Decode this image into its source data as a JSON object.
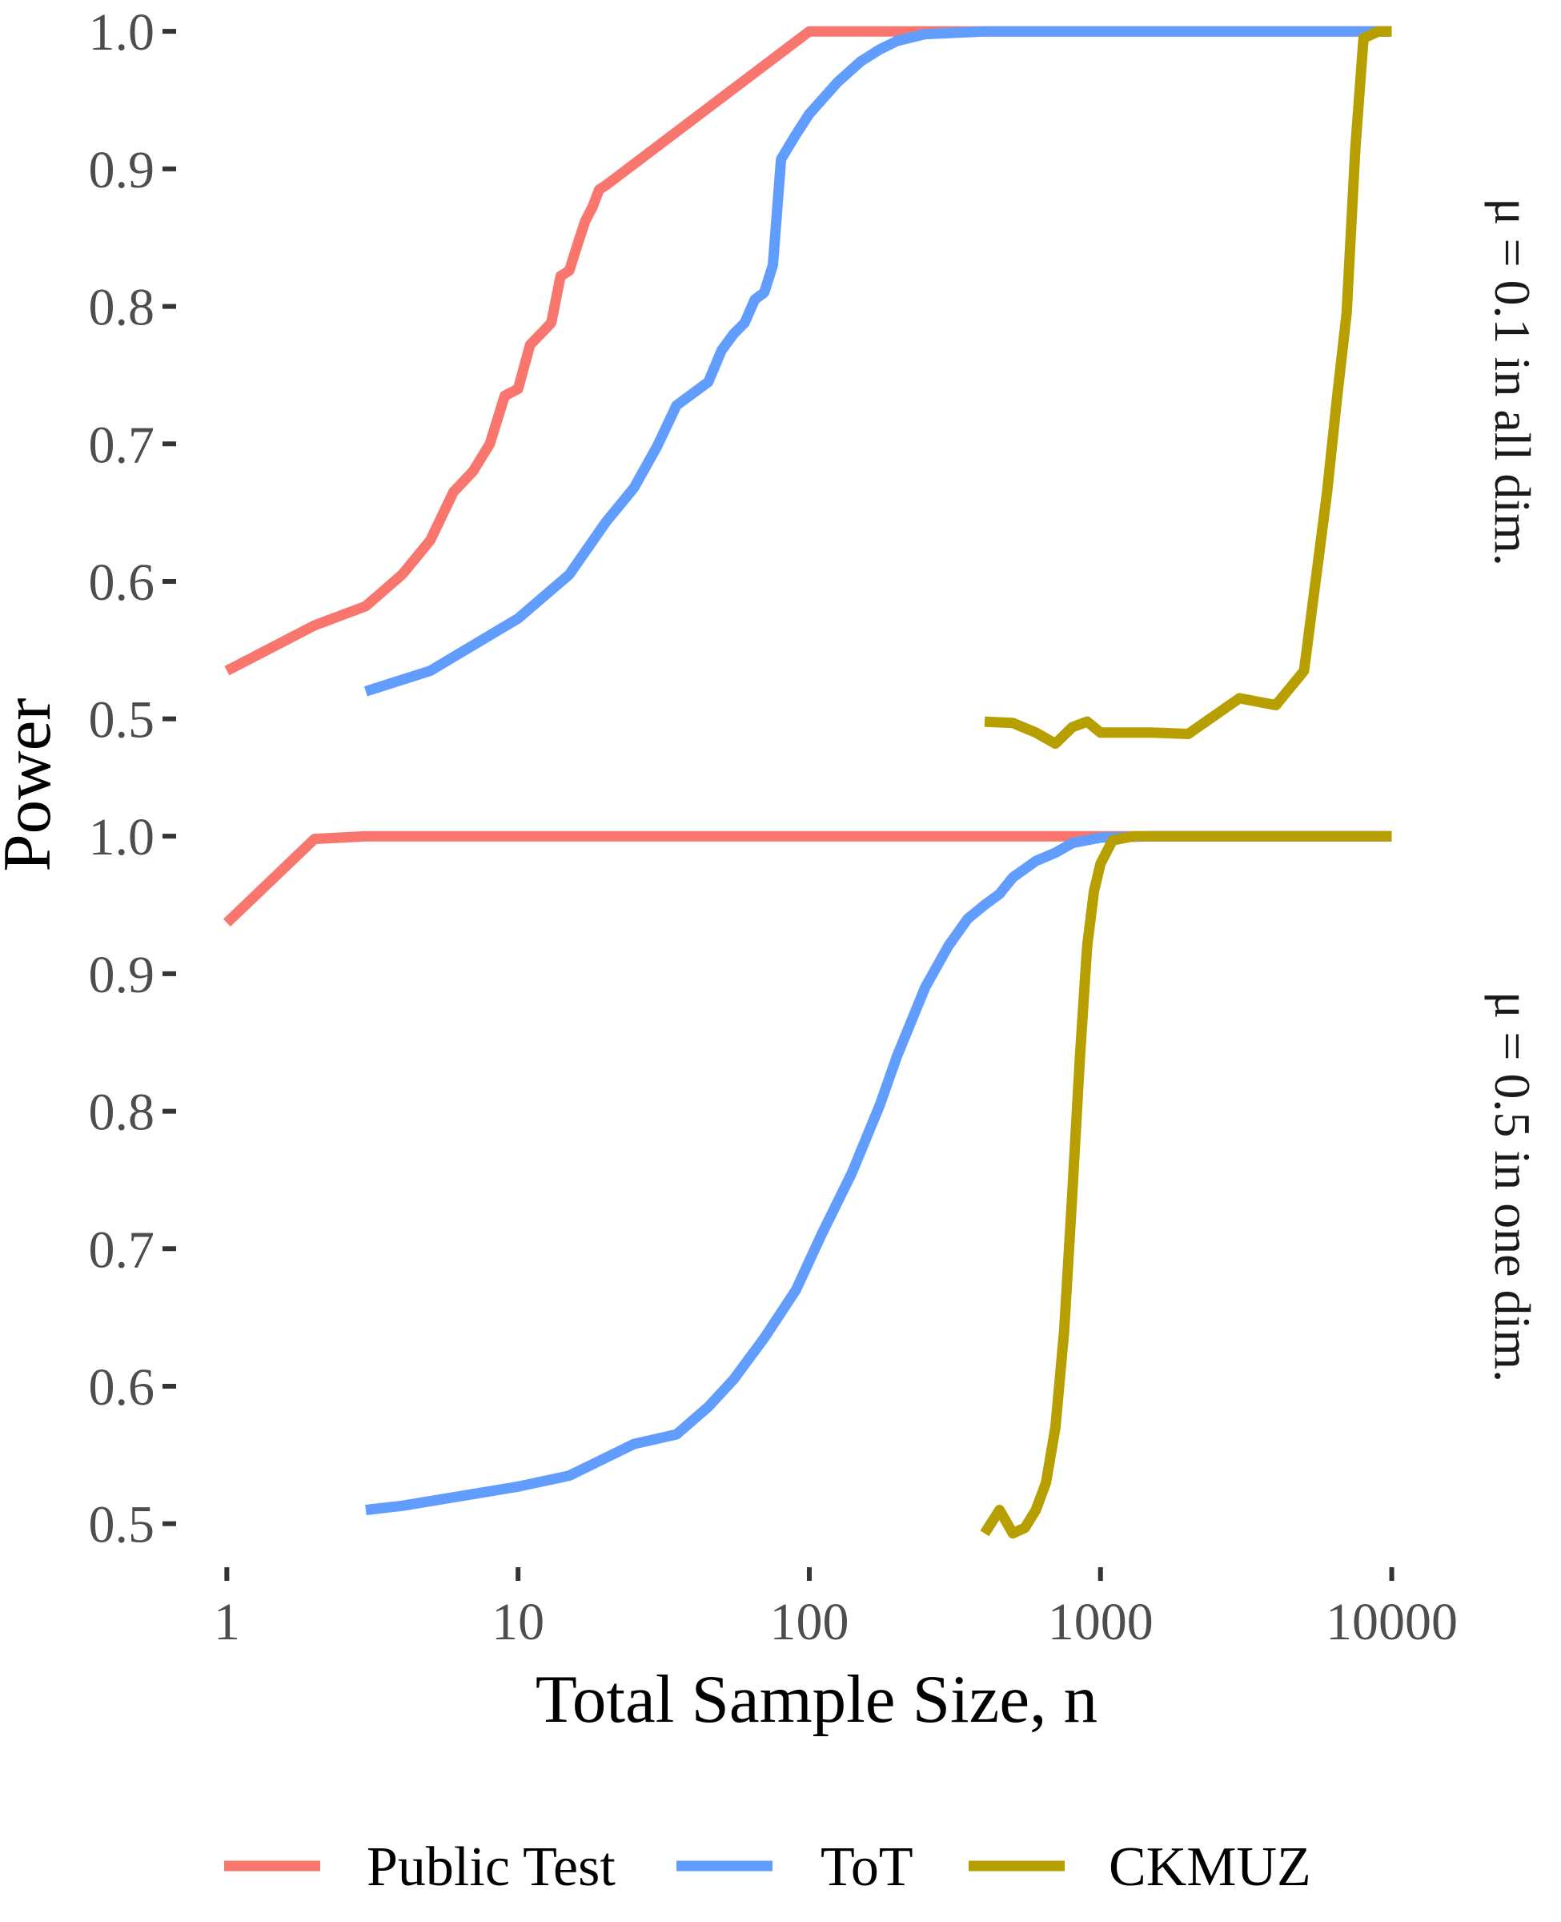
{
  "chart_data": {
    "type": "line",
    "xlabel": "Total Sample Size, n",
    "ylabel": "Power",
    "x_scale": "log10",
    "x_ticks": [
      1,
      10,
      100,
      1000,
      10000
    ],
    "x_tick_labels": [
      "1",
      "10",
      "100",
      "1000",
      "10000"
    ],
    "y_ticks": [
      0.5,
      0.6,
      0.7,
      0.8,
      0.9,
      1.0
    ],
    "y_tick_labels": [
      "0.5",
      "0.6",
      "0.7",
      "0.8",
      "0.9",
      "1.0"
    ],
    "ylim": [
      0.48,
      1.01
    ],
    "xlim": [
      0.76,
      13000
    ],
    "grid": false,
    "legend_position": "bottom",
    "colors": {
      "Public Test": "#F8766D",
      "ToT": "#619CFF",
      "CKMUZ": "#B79F00"
    },
    "legend": [
      {
        "name": "Public Test",
        "color": "#F8766D"
      },
      {
        "name": "ToT",
        "color": "#619CFF"
      },
      {
        "name": "CKMUZ",
        "color": "#B79F00"
      }
    ],
    "panels": [
      {
        "strip": "μ = 0.1 in all dim.",
        "series": [
          {
            "name": "Public Test",
            "color": "#F8766D",
            "points": [
              [
                1,
                0.535
              ],
              [
                2,
                0.568
              ],
              [
                3,
                0.582
              ],
              [
                4,
                0.605
              ],
              [
                5,
                0.63
              ],
              [
                6,
                0.665
              ],
              [
                7,
                0.68
              ],
              [
                8,
                0.7
              ],
              [
                9,
                0.735
              ],
              [
                10,
                0.74
              ],
              [
                11,
                0.772
              ],
              [
                13,
                0.788
              ],
              [
                14,
                0.822
              ],
              [
                15,
                0.826
              ],
              [
                16,
                0.845
              ],
              [
                17,
                0.862
              ],
              [
                18,
                0.872
              ],
              [
                19,
                0.885
              ],
              [
                20,
                0.888
              ],
              [
                100,
                1.0
              ],
              [
                10000,
                1.0
              ]
            ]
          },
          {
            "name": "ToT",
            "color": "#619CFF",
            "points": [
              [
                3,
                0.52
              ],
              [
                5,
                0.535
              ],
              [
                10,
                0.573
              ],
              [
                15,
                0.605
              ],
              [
                20,
                0.643
              ],
              [
                25,
                0.668
              ],
              [
                30,
                0.698
              ],
              [
                35,
                0.728
              ],
              [
                45,
                0.745
              ],
              [
                50,
                0.768
              ],
              [
                55,
                0.78
              ],
              [
                60,
                0.788
              ],
              [
                65,
                0.805
              ],
              [
                70,
                0.81
              ],
              [
                75,
                0.83
              ],
              [
                80,
                0.907
              ],
              [
                90,
                0.925
              ],
              [
                100,
                0.94
              ],
              [
                125,
                0.963
              ],
              [
                150,
                0.978
              ],
              [
                175,
                0.987
              ],
              [
                200,
                0.993
              ],
              [
                250,
                0.998
              ],
              [
                400,
                1.0
              ],
              [
                10000,
                1.0
              ]
            ]
          },
          {
            "name": "CKMUZ",
            "color": "#B79F00",
            "points": [
              [
                400,
                0.498
              ],
              [
                500,
                0.497
              ],
              [
                600,
                0.49
              ],
              [
                700,
                0.482
              ],
              [
                800,
                0.494
              ],
              [
                900,
                0.498
              ],
              [
                1000,
                0.49
              ],
              [
                1500,
                0.49
              ],
              [
                2000,
                0.489
              ],
              [
                3000,
                0.515
              ],
              [
                4000,
                0.51
              ],
              [
                5000,
                0.535
              ],
              [
                6000,
                0.665
              ],
              [
                6500,
                0.735
              ],
              [
                7000,
                0.795
              ],
              [
                7500,
                0.915
              ],
              [
                8000,
                0.995
              ],
              [
                9000,
                1.0
              ],
              [
                10000,
                1.0
              ]
            ]
          }
        ]
      },
      {
        "strip": "μ = 0.5 in one dim.",
        "series": [
          {
            "name": "Public Test",
            "color": "#F8766D",
            "points": [
              [
                1,
                0.937
              ],
              [
                2,
                0.998
              ],
              [
                3,
                1.0
              ],
              [
                10000,
                1.0
              ]
            ]
          },
          {
            "name": "ToT",
            "color": "#619CFF",
            "points": [
              [
                3,
                0.51
              ],
              [
                4,
                0.513
              ],
              [
                10,
                0.527
              ],
              [
                15,
                0.535
              ],
              [
                25,
                0.558
              ],
              [
                35,
                0.565
              ],
              [
                45,
                0.585
              ],
              [
                55,
                0.605
              ],
              [
                70,
                0.635
              ],
              [
                90,
                0.67
              ],
              [
                110,
                0.71
              ],
              [
                140,
                0.755
              ],
              [
                175,
                0.805
              ],
              [
                200,
                0.84
              ],
              [
                250,
                0.89
              ],
              [
                300,
                0.92
              ],
              [
                350,
                0.94
              ],
              [
                400,
                0.95
              ],
              [
                450,
                0.958
              ],
              [
                500,
                0.97
              ],
              [
                600,
                0.982
              ],
              [
                700,
                0.988
              ],
              [
                800,
                0.995
              ],
              [
                1000,
                0.999
              ],
              [
                1500,
                1.0
              ],
              [
                10000,
                1.0
              ]
            ]
          },
          {
            "name": "CKMUZ",
            "color": "#B79F00",
            "points": [
              [
                400,
                0.493
              ],
              [
                450,
                0.51
              ],
              [
                500,
                0.493
              ],
              [
                550,
                0.497
              ],
              [
                600,
                0.51
              ],
              [
                650,
                0.53
              ],
              [
                700,
                0.57
              ],
              [
                750,
                0.64
              ],
              [
                800,
                0.74
              ],
              [
                850,
                0.84
              ],
              [
                900,
                0.92
              ],
              [
                950,
                0.96
              ],
              [
                1000,
                0.98
              ],
              [
                1100,
                0.997
              ],
              [
                1300,
                1.0
              ],
              [
                10000,
                1.0
              ]
            ]
          }
        ]
      }
    ]
  }
}
